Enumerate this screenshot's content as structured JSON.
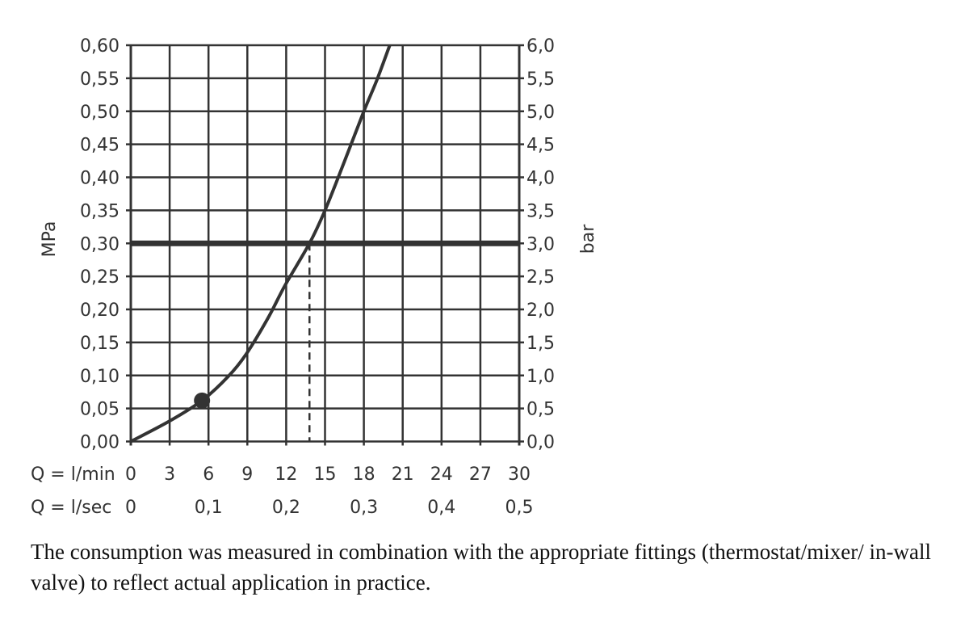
{
  "chart_data": {
    "type": "line",
    "xlabel_rows": [
      {
        "label": "Q = l/min",
        "ticks": [
          "0",
          "3",
          "6",
          "9",
          "12",
          "15",
          "18",
          "21",
          "24",
          "27",
          "30"
        ],
        "values": [
          0,
          3,
          6,
          9,
          12,
          15,
          18,
          21,
          24,
          27,
          30
        ]
      },
      {
        "label": "Q = l/sec",
        "ticks": [
          "0",
          "0,1",
          "0,2",
          "0,3",
          "0,4",
          "0,5"
        ],
        "values": [
          0,
          6,
          12,
          18,
          24,
          30
        ]
      }
    ],
    "ylabel_left": "MPa",
    "ylabel_right": "bar",
    "yticks_left": [
      "0,00",
      "0,05",
      "0,10",
      "0,15",
      "0,20",
      "0,25",
      "0,30",
      "0,35",
      "0,40",
      "0,45",
      "0,50",
      "0,55",
      "0,60"
    ],
    "yticks_right": [
      "0,0",
      "0,5",
      "1,0",
      "1,5",
      "2,0",
      "2,5",
      "3,0",
      "3,5",
      "4,0",
      "4,5",
      "5,0",
      "5,5",
      "6,0"
    ],
    "xlim": [
      0,
      30
    ],
    "ylim": [
      0,
      0.6
    ],
    "grid": true,
    "series": [
      {
        "x": [
          0,
          3.0,
          5.5,
          7.5,
          8.9,
          10.6,
          11.9,
          13.8,
          15.0,
          16.5,
          18.0,
          19.0,
          20.0
        ],
        "y": [
          0,
          0.031,
          0.062,
          0.098,
          0.132,
          0.187,
          0.236,
          0.3,
          0.35,
          0.424,
          0.5,
          0.547,
          0.6
        ],
        "color": "#333333"
      }
    ],
    "marker_point": {
      "x": 5.5,
      "y": 0.062
    },
    "reference_line": {
      "y": 0.3
    },
    "dashed_drop": {
      "x": 13.8,
      "y": 0.3
    }
  },
  "caption": "The consumption was measured in combination with the appropriate fittings (thermostat/mixer/ in-wall valve) to reflect actual application in practice."
}
